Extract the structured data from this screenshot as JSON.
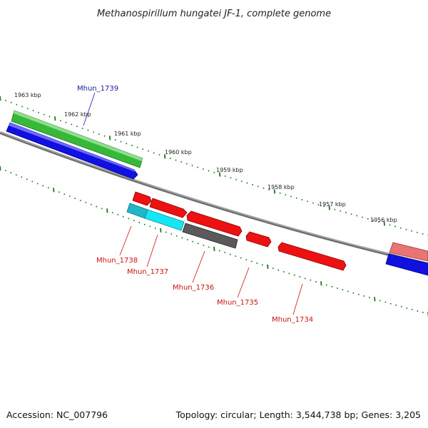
{
  "title": "Methanospirillum hungatei JF-1, complete genome",
  "accession_text": "Accession: NC_007796",
  "summary_text": "Topology: circular; Length: 3,544,738 bp; Genes: 3,205",
  "colors": {
    "backbone": "#7a7a7a",
    "tick": "#1a7a1a",
    "forward_cds": "#3cbf3c",
    "forward_cds_pink": "#e07070",
    "blue_track": "#1010e0",
    "reverse_cds_red": "#ee1111",
    "reverse_cds_cyan": "#10d8e8",
    "reverse_cds_gray": "#5a5a5a",
    "label_forward": "#1a1aa0",
    "label_reverse": "#cc1111"
  },
  "scale_labels": [
    "1963 kbp",
    "1962 kbp",
    "1961 kbp",
    "1960 kbp",
    "1959 kbp",
    "1958 kbp",
    "1957 kbp",
    "1956 kbp"
  ],
  "genes": [
    {
      "id": "Mhun_1739",
      "strand": "forward"
    },
    {
      "id": "Mhun_1738",
      "strand": "reverse"
    },
    {
      "id": "Mhun_1737",
      "strand": "reverse"
    },
    {
      "id": "Mhun_1736",
      "strand": "reverse"
    },
    {
      "id": "Mhun_1735",
      "strand": "reverse"
    },
    {
      "id": "Mhun_1734",
      "strand": "reverse"
    }
  ]
}
